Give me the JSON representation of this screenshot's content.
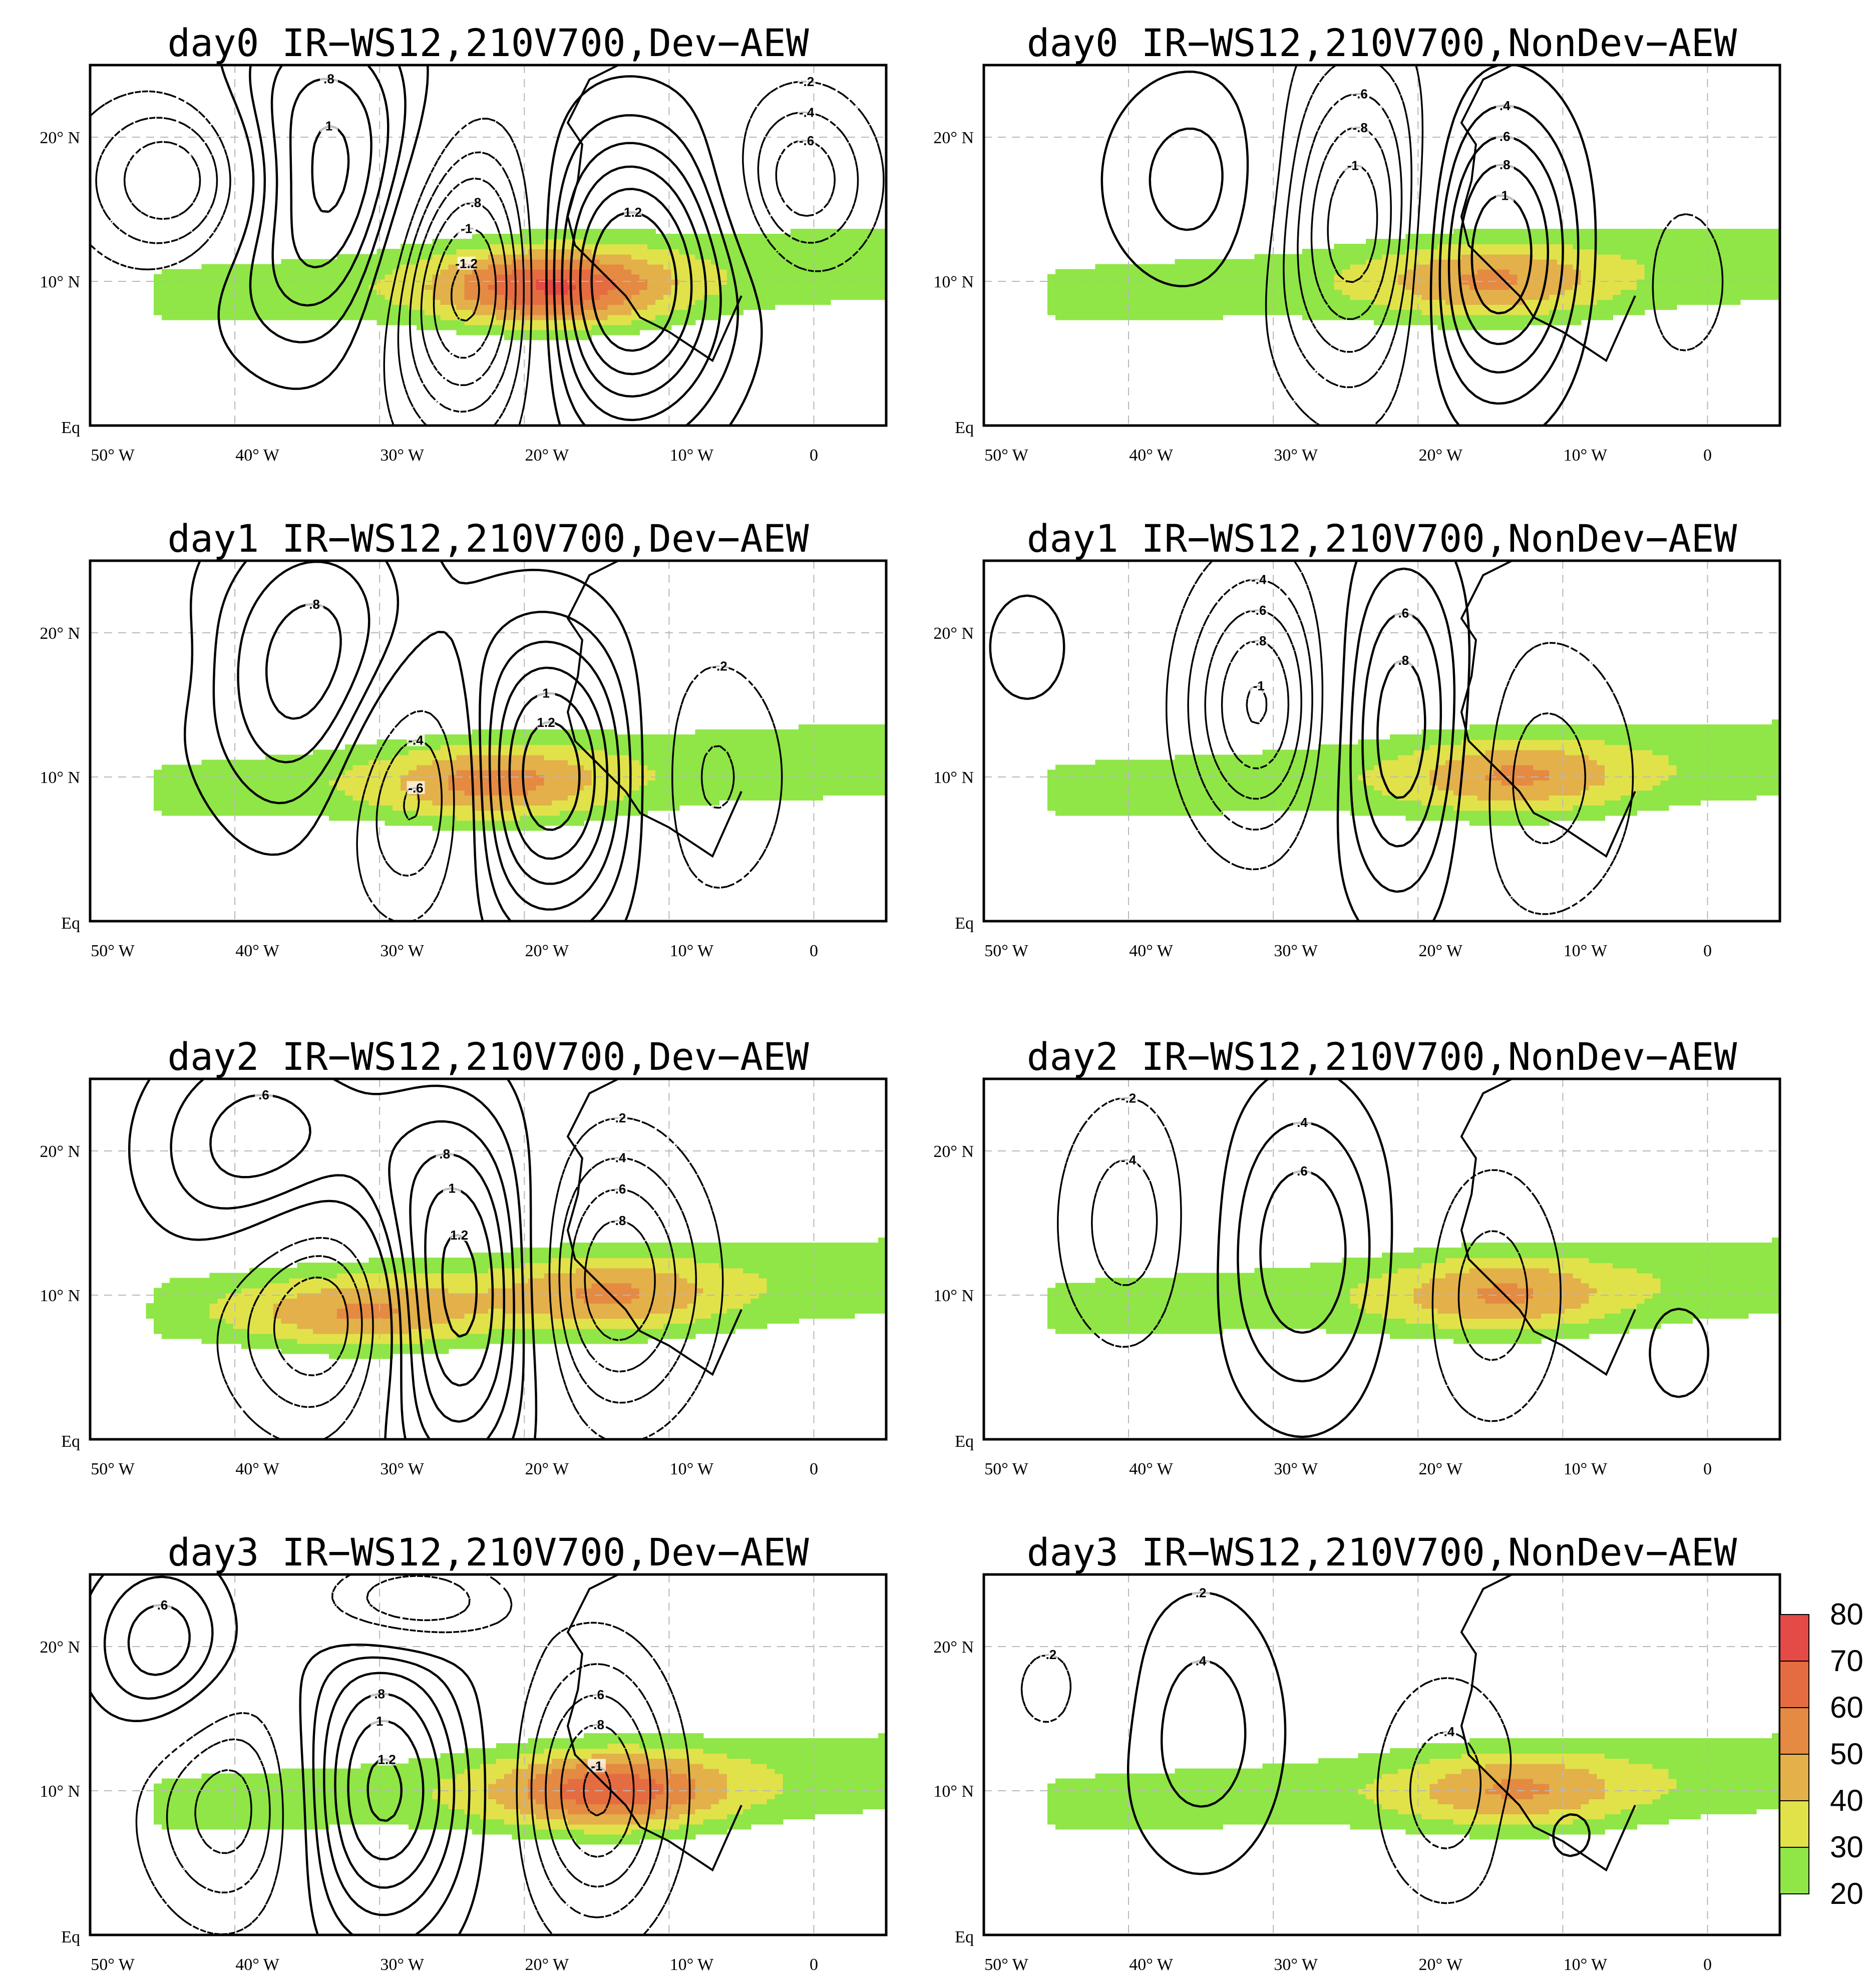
{
  "figure": {
    "panels": [
      {
        "key": "d0dev",
        "title": "day0  IR−WS12,210V700,Dev−AEW"
      },
      {
        "key": "d0non",
        "title": "day0  IR−WS12,210V700,NonDev−AEW"
      },
      {
        "key": "d1dev",
        "title": "day1  IR−WS12,210V700,Dev−AEW"
      },
      {
        "key": "d1non",
        "title": "day1  IR−WS12,210V700,NonDev−AEW"
      },
      {
        "key": "d2dev",
        "title": "day2  IR−WS12,210V700,Dev−AEW"
      },
      {
        "key": "d2non",
        "title": "day2  IR−WS12,210V700,NonDev−AEW"
      },
      {
        "key": "d3dev",
        "title": "day3  IR−WS12,210V700,Dev−AEW"
      },
      {
        "key": "d3non",
        "title": "day3  IR−WS12,210V700,NonDev−AEW"
      }
    ],
    "x_tick_labels": [
      "50°  W",
      "40°  W",
      "30°  W",
      "20°  W",
      "10°  W",
      "0"
    ],
    "y_tick_labels": [
      "20°  N",
      "10°  N",
      "Eq"
    ],
    "colorbar": {
      "levels": [
        20,
        30,
        40,
        50,
        60,
        70,
        80
      ],
      "colors": [
        "#8fe646",
        "#e1e24a",
        "#e3b04a",
        "#e48a42",
        "#e56c40",
        "#e44a46"
      ]
    }
  },
  "chart_data": {
    "type": "contour",
    "x_axis": {
      "name": "longitude",
      "range_degE": [
        -50,
        5
      ],
      "ticks": [
        -50,
        -40,
        -30,
        -20,
        -10,
        0
      ]
    },
    "y_axis": {
      "name": "latitude",
      "range_degN": [
        0,
        25
      ],
      "ticks": [
        20,
        10,
        0
      ]
    },
    "shading_levels": [
      20,
      30,
      40,
      50,
      60,
      70,
      80
    ],
    "contour_levels_positive": [
      0.2,
      0.4,
      0.6,
      0.8,
      1.0,
      1.2
    ],
    "contour_levels_negative": [
      -0.2,
      -0.4,
      -0.6,
      -0.8,
      -1.0,
      -1.2
    ],
    "panels": [
      {
        "key": "d0dev",
        "centers": [
          {
            "lon": -34,
            "lat": 17,
            "amp": 1.0,
            "rx": 8,
            "ry": 11
          },
          {
            "lon": -13,
            "lat": 10,
            "amp": 1.2,
            "rx": 7,
            "ry": 10
          },
          {
            "lon": -24,
            "lat": 10,
            "amp": -1.2,
            "rx": 6,
            "ry": 10
          },
          {
            "lon": -43,
            "lat": 17,
            "amp": -0.8,
            "rx": 7,
            "ry": 6
          },
          {
            "lon": -1,
            "lat": 17,
            "amp": -0.6,
            "rx": 5,
            "ry": 6
          }
        ],
        "ir": [
          {
            "lon": -18,
            "lat": 9.5,
            "amp": 72
          }
        ]
      },
      {
        "key": "d0non",
        "centers": [
          {
            "lon": -35,
            "lat": 17,
            "amp": 0.4,
            "rx": 7,
            "ry": 8
          },
          {
            "lon": -24,
            "lat": 14,
            "amp": -1.0,
            "rx": 6,
            "ry": 11
          },
          {
            "lon": -15,
            "lat": 12,
            "amp": 1.0,
            "rx": 6,
            "ry": 10
          },
          {
            "lon": -2,
            "lat": 10,
            "amp": -0.2,
            "rx": 6,
            "ry": 10
          }
        ],
        "ir": [
          {
            "lon": -15,
            "lat": 10,
            "amp": 52
          }
        ]
      },
      {
        "key": "d1dev",
        "centers": [
          {
            "lon": -34,
            "lat": 17,
            "amp": 0.8,
            "rx": 8,
            "ry": 11
          },
          {
            "lon": -19,
            "lat": 10,
            "amp": 1.2,
            "rx": 7,
            "ry": 10
          },
          {
            "lon": -27,
            "lat": 10,
            "amp": -1.0,
            "rx": 6,
            "ry": 9
          },
          {
            "lon": -8,
            "lat": 10,
            "amp": -0.4,
            "rx": 6,
            "ry": 9
          },
          {
            "lon": -47,
            "lat": 18,
            "amp": -0.2,
            "rx": 4,
            "ry": 4
          }
        ],
        "ir": [
          {
            "lon": -22,
            "lat": 9.5,
            "amp": 55
          }
        ]
      },
      {
        "key": "d1non",
        "centers": [
          {
            "lon": -47,
            "lat": 19,
            "amp": 0.2,
            "rx": 5,
            "ry": 7
          },
          {
            "lon": -31,
            "lat": 15,
            "amp": -0.8,
            "rx": 5,
            "ry": 9
          },
          {
            "lon": -21,
            "lat": 13,
            "amp": 0.8,
            "rx": 5,
            "ry": 12
          },
          {
            "lon": -12,
            "lat": 10,
            "amp": -0.4,
            "rx": 7,
            "ry": 10
          }
        ],
        "ir": [
          {
            "lon": -13,
            "lat": 10,
            "amp": 52
          }
        ]
      },
      {
        "key": "d2dev",
        "centers": [
          {
            "lon": -38,
            "lat": 20,
            "amp": 0.6,
            "rx": 8,
            "ry": 8
          },
          {
            "lon": -25,
            "lat": 10,
            "amp": 1.2,
            "rx": 6,
            "ry": 12
          },
          {
            "lon": -33,
            "lat": 9,
            "amp": -0.8,
            "rx": 7,
            "ry": 8
          },
          {
            "lon": -14,
            "lat": 11,
            "amp": -0.8,
            "rx": 6,
            "ry": 9
          }
        ],
        "ir": [
          {
            "lon": -31,
            "lat": 8.5,
            "amp": 53
          },
          {
            "lon": -14,
            "lat": 10,
            "amp": 52
          }
        ]
      },
      {
        "key": "d2non",
        "centers": [
          {
            "lon": -40,
            "lat": 15,
            "amp": -0.4,
            "rx": 5,
            "ry": 9
          },
          {
            "lon": -28,
            "lat": 13,
            "amp": 0.6,
            "rx": 6,
            "ry": 11
          },
          {
            "lon": -15,
            "lat": 10,
            "amp": -0.4,
            "rx": 5,
            "ry": 9
          },
          {
            "lon": -2,
            "lat": 6,
            "amp": 0.2,
            "rx": 4,
            "ry": 6
          }
        ],
        "ir": [
          {
            "lon": -14,
            "lat": 10,
            "amp": 52
          }
        ]
      },
      {
        "key": "d3dev",
        "centers": [
          {
            "lon": -45,
            "lat": 20,
            "amp": 0.6,
            "rx": 5,
            "ry": 6
          },
          {
            "lon": -30,
            "lat": 10,
            "amp": 1.0,
            "rx": 6,
            "ry": 10
          },
          {
            "lon": -40,
            "lat": 9,
            "amp": -0.6,
            "rx": 6,
            "ry": 8
          },
          {
            "lon": -15,
            "lat": 10,
            "amp": -0.8,
            "rx": 5,
            "ry": 9
          },
          {
            "lon": -28,
            "lat": 23,
            "amp": -0.6,
            "rx": 6,
            "ry": 3
          }
        ],
        "ir": [
          {
            "lon": -14,
            "lat": 10,
            "amp": 68
          }
        ]
      },
      {
        "key": "d3non",
        "centers": [
          {
            "lon": -35,
            "lat": 14,
            "amp": 0.4,
            "rx": 6,
            "ry": 10
          },
          {
            "lon": -45,
            "lat": 17,
            "amp": -0.2,
            "rx": 5,
            "ry": 6
          },
          {
            "lon": -18,
            "lat": 10,
            "amp": -0.4,
            "rx": 5,
            "ry": 8
          },
          {
            "lon": -10,
            "lat": 7,
            "amp": 0.2,
            "rx": 4,
            "ry": 4
          }
        ],
        "ir": [
          {
            "lon": -13,
            "lat": 10,
            "amp": 52
          }
        ]
      }
    ]
  }
}
